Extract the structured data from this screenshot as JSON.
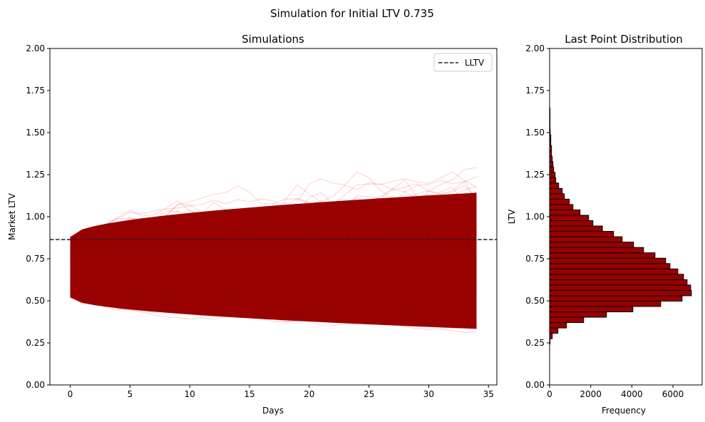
{
  "chart_data": [
    {
      "type": "line",
      "suptitle": "Simulation for Initial LTV 0.735",
      "title": "Simulations",
      "xlabel": "Days",
      "ylabel": "Market LTV",
      "xlim": [
        -1.7,
        35.7
      ],
      "ylim": [
        0,
        2.0
      ],
      "xticks": [
        0,
        5,
        10,
        15,
        20,
        25,
        30,
        35
      ],
      "yticks": [
        "0.00",
        "0.25",
        "0.50",
        "0.75",
        "1.00",
        "1.25",
        "1.50",
        "1.75",
        "2.00"
      ],
      "days": [
        0,
        34
      ],
      "initial_ltv": 0.735,
      "line_color": "#ff0000",
      "dense_color": "#990000",
      "start_range": [
        0.52,
        0.88
      ],
      "end_range": [
        0.23,
        1.73
      ],
      "reference_line": {
        "label": "LLTV",
        "value": 0.864,
        "style": "dashed",
        "color": "#222222"
      },
      "legend": {
        "entries": [
          "LLTV"
        ],
        "placement": "top-right"
      }
    },
    {
      "type": "bar",
      "orientation": "horizontal",
      "title": "Last Point Distribution",
      "xlabel": "Frequency",
      "ylabel": "LTV",
      "xlim": [
        0,
        7420
      ],
      "ylim": [
        0,
        2.0
      ],
      "xticks": [
        "0",
        "2000",
        "4000",
        "6000"
      ],
      "yticks": [
        "0.00",
        "0.25",
        "0.50",
        "0.75",
        "1.00",
        "1.25",
        "1.50",
        "1.75",
        "2.00"
      ],
      "bin_start": 0.243,
      "bin_width": 0.0319,
      "color": "#990000",
      "edge_color": "#000000",
      "values": [
        23,
        127,
        405,
        821,
        1655,
        2765,
        4050,
        5403,
        6445,
        6896,
        6861,
        6688,
        6514,
        6236,
        5855,
        5646,
        5126,
        4570,
        4084,
        3529,
        3112,
        2569,
        2106,
        1897,
        1481,
        1134,
        960,
        717,
        613,
        440,
        300,
        266,
        197,
        162,
        127,
        93,
        93,
        58,
        58,
        30,
        20,
        10,
        5,
        3
      ]
    }
  ]
}
